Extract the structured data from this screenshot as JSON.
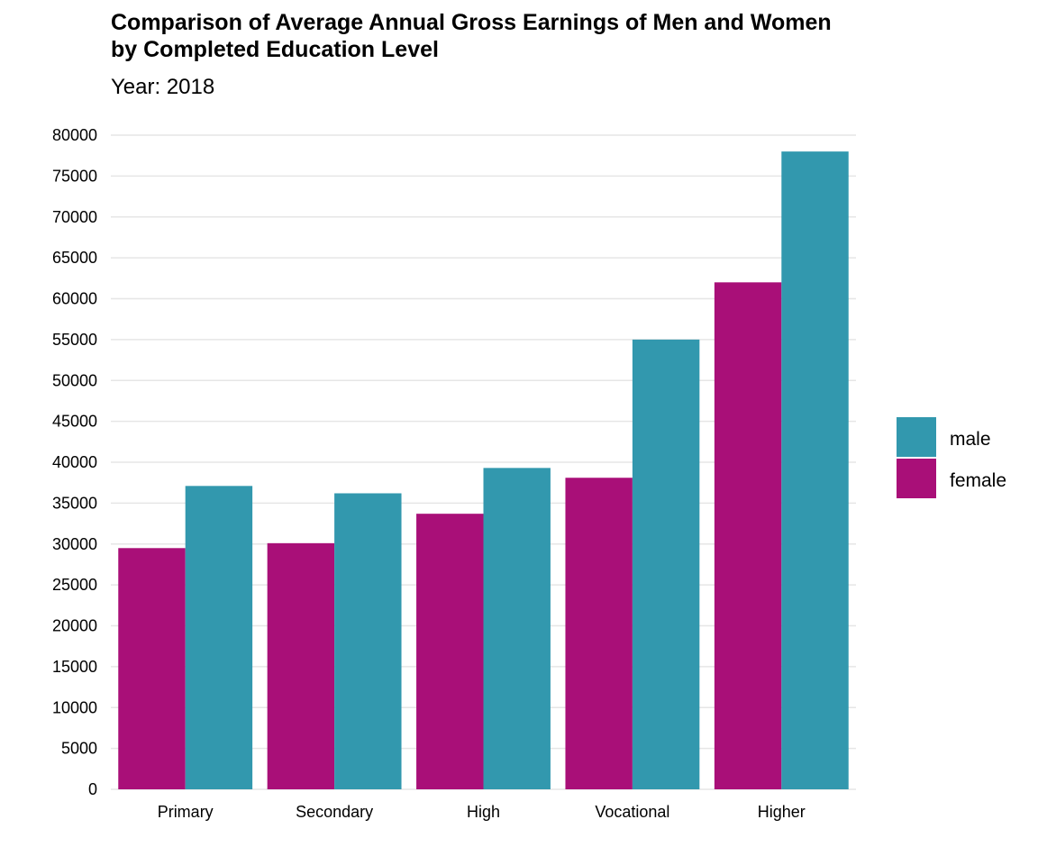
{
  "chart_data": {
    "type": "bar",
    "title_lines": [
      "Comparison of Average Annual Gross Earnings of Men and Women",
      "by Completed Education Level"
    ],
    "subtitle": "Year: 2018",
    "xlabel": "",
    "ylabel": "",
    "categories": [
      "Primary",
      "Secondary",
      "High",
      "Vocational",
      "Higher"
    ],
    "series": [
      {
        "name": "female",
        "color": "#A90F78",
        "values": [
          29500,
          30100,
          33700,
          38100,
          62000
        ]
      },
      {
        "name": "male",
        "color": "#3298AE",
        "values": [
          37100,
          36200,
          39300,
          55000,
          78000
        ]
      }
    ],
    "ylim": [
      0,
      80000
    ],
    "yticks": [
      "0",
      "5000",
      "10000",
      "15000",
      "20000",
      "25000",
      "30000",
      "35000",
      "40000",
      "45000",
      "50000",
      "55000",
      "60000",
      "65000",
      "70000",
      "75000",
      "80000"
    ],
    "legend": {
      "position": "right",
      "order": [
        "male",
        "female"
      ]
    },
    "grid": true
  }
}
